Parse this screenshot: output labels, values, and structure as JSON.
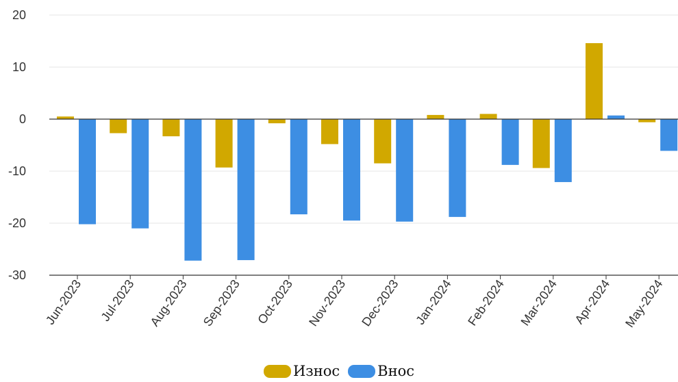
{
  "chart_data": {
    "type": "bar",
    "title": "",
    "xlabel": "",
    "ylabel": "",
    "categories": [
      "Jun-2023",
      "Jul-2023",
      "Aug-2023",
      "Sep-2023",
      "Oct-2023",
      "Nov-2023",
      "Dec-2023",
      "Jan-2024",
      "Feb-2024",
      "Mar-2024",
      "Apr-2024",
      "May-2024"
    ],
    "series": [
      {
        "name": "Износ",
        "color": "#D1A800",
        "values": [
          0.5,
          -2.7,
          -3.3,
          -9.3,
          -0.8,
          -4.8,
          -8.5,
          0.8,
          1.0,
          -9.4,
          14.6,
          -0.6
        ]
      },
      {
        "name": "Внос",
        "color": "#3D8EE3",
        "values": [
          -20.2,
          -21.0,
          -27.2,
          -27.1,
          -18.3,
          -19.5,
          -19.7,
          -18.8,
          -8.8,
          -12.1,
          0.7,
          -6.1
        ]
      }
    ],
    "ylim": [
      -30,
      20
    ],
    "yticks": [
      20,
      10,
      0,
      -10,
      -20,
      -30
    ],
    "grid": true,
    "legend_position": "bottom"
  }
}
